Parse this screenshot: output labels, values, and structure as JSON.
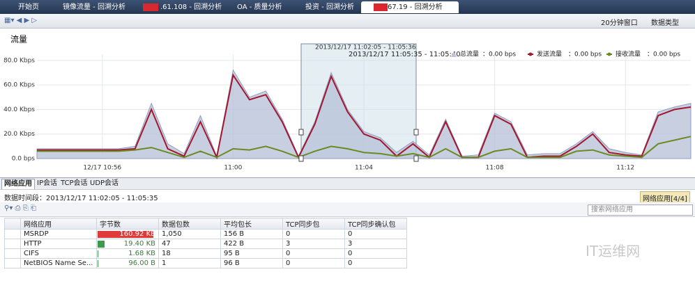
{
  "tabs": [
    "开始页",
    "镜像流量 - 回溯分析",
    ".61.108 - 回溯分析",
    "OA - 质量分析",
    "投资 - 回溯分析",
    "67.19 - 回溯分析"
  ],
  "toolbar": {
    "window": "20分钟窗口",
    "data_type": "数据类型"
  },
  "chart": {
    "type": "line",
    "title": "流量",
    "categories": [
      null,
      null,
      null,
      null,
      "12/17 10:56",
      null,
      null,
      null,
      null,
      null,
      null,
      null,
      "11:00",
      null,
      null,
      null,
      null,
      null,
      null,
      null,
      "11:04",
      null,
      null,
      null,
      null,
      null,
      null,
      null,
      "11:08",
      null,
      null,
      null,
      null,
      null,
      null,
      null,
      "11:12",
      null,
      null,
      null,
      null
    ],
    "series": [
      {
        "name": "总流量",
        "legend_value": "：0.00 bps",
        "color": "#b9c3da",
        "values": [
          8,
          8,
          8,
          8,
          8,
          8,
          10,
          45,
          12,
          4,
          35,
          2,
          72,
          50,
          55,
          32,
          2,
          30,
          70,
          40,
          22,
          17,
          5,
          14,
          3,
          32,
          2,
          3,
          37,
          30,
          3,
          4,
          4,
          12,
          22,
          8,
          5,
          3,
          38,
          42,
          45
        ]
      },
      {
        "name": "发送流量",
        "legend_value": "：0.00 bps",
        "color": "#a3172f",
        "values": [
          7,
          7,
          7,
          7,
          7,
          7,
          8,
          40,
          8,
          2,
          30,
          1,
          68,
          48,
          52,
          30,
          1,
          28,
          67,
          38,
          20,
          15,
          2,
          12,
          1,
          30,
          1,
          1,
          35,
          28,
          1,
          2,
          2,
          10,
          20,
          5,
          3,
          2,
          35,
          40,
          42
        ]
      },
      {
        "name": "接收流量",
        "legend_value": "：0.00 bps",
        "color": "#6b8a22",
        "values": [
          6,
          6,
          6,
          6,
          6,
          6,
          7,
          9,
          5,
          1,
          6,
          1,
          8,
          7,
          10,
          6,
          1,
          6,
          10,
          8,
          5,
          4,
          2,
          4,
          1,
          8,
          1,
          1,
          6,
          8,
          1,
          1,
          1,
          6,
          7,
          3,
          2,
          1,
          12,
          15,
          18
        ]
      }
    ],
    "ylim": [
      0,
      85
    ],
    "yticks": [
      {
        "value": 0,
        "label": "0.0 bps"
      },
      {
        "value": 20,
        "label": "20.0 Kbps"
      },
      {
        "value": 40,
        "label": "40.0 Kbps"
      },
      {
        "value": 60,
        "label": "60.0 Kbps"
      },
      {
        "value": 80,
        "label": "80.0 Kbps"
      }
    ],
    "grid": true,
    "selection_label": "2013/12/17 11:02:05 - 11:05:36",
    "cursor_label": "2013/12/17 11:05:35 - 11:05:40"
  },
  "sub_tabs": [
    "网络应用",
    "IP会话",
    "TCP会话",
    "UDP会话"
  ],
  "period": "数据时间段：2013/12/17  11:02:05 - 11:05:35",
  "panel_label": "网络应用[4/4]",
  "search_placeholder": "搜索网络应用",
  "table": {
    "headers": [
      "网络应用",
      "字节数",
      "数据包数",
      "平均包长",
      "TCP同步包",
      "TCP同步确认包"
    ],
    "rows": [
      [
        "MSRDP",
        "160.92 KB",
        "1,050",
        "156 B",
        "0",
        "0"
      ],
      [
        "HTTP",
        "19.40 KB",
        "47",
        "422 B",
        "3",
        "3"
      ],
      [
        "CIFS",
        "1.68 KB",
        "18",
        "95 B",
        "0",
        "0"
      ],
      [
        "NetBIOS Name Se...",
        "96.00 B",
        "1",
        "96 B",
        "0",
        "0"
      ]
    ],
    "bytes_kb": [
      160.92,
      19.4,
      1.68,
      0.09375
    ],
    "bar_colors": [
      "#e03a3a",
      "#3c9a4a",
      "#3c9a4a",
      "#3c9a4a"
    ]
  },
  "watermark": "IT运维网"
}
